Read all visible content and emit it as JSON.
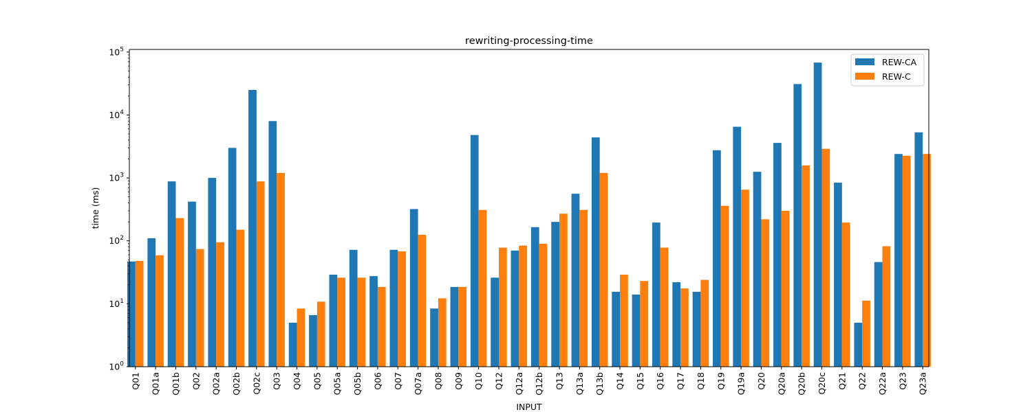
{
  "chart_data": {
    "type": "bar",
    "title": "rewriting-processing-time",
    "xlabel": "INPUT",
    "ylabel": "time (ms)",
    "yscale": "log",
    "ylim": [
      1,
      110000
    ],
    "yticks": [
      {
        "value": 1,
        "base": "10",
        "exp": "0"
      },
      {
        "value": 10,
        "base": "10",
        "exp": "1"
      },
      {
        "value": 100,
        "base": "10",
        "exp": "2"
      },
      {
        "value": 1000,
        "base": "10",
        "exp": "3"
      },
      {
        "value": 10000,
        "base": "10",
        "exp": "4"
      },
      {
        "value": 100000,
        "base": "10",
        "exp": "5"
      }
    ],
    "grid": false,
    "legend_position": "top-right",
    "categories": [
      "Q01",
      "Q01a",
      "Q01b",
      "Q02",
      "Q02a",
      "Q02b",
      "Q02c",
      "Q03",
      "Q04",
      "Q05",
      "Q05a",
      "Q05b",
      "Q06",
      "Q07",
      "Q07a",
      "Q08",
      "Q09",
      "Q10",
      "Q12",
      "Q12a",
      "Q12b",
      "Q13",
      "Q13a",
      "Q13b",
      "Q14",
      "Q15",
      "Q16",
      "Q17",
      "Q18",
      "Q19",
      "Q19a",
      "Q20",
      "Q20a",
      "Q20b",
      "Q20c",
      "Q21",
      "Q22",
      "Q22a",
      "Q23",
      "Q23a"
    ],
    "series": [
      {
        "name": "REW-CA",
        "color": "#1f77b4",
        "values": [
          47,
          110,
          880,
          420,
          1000,
          3000,
          25000,
          8000,
          5,
          6.6,
          29,
          72,
          27.5,
          72,
          320,
          8.4,
          18.5,
          4800,
          26,
          70,
          165,
          200,
          560,
          4400,
          15.5,
          14,
          195,
          22,
          15.5,
          2750,
          6500,
          1250,
          3600,
          31000,
          68000,
          840,
          5,
          46,
          2400,
          5300
        ]
      },
      {
        "name": "REW-C",
        "color": "#ff7f0e",
        "values": [
          48,
          59,
          230,
          74,
          95,
          150,
          880,
          1200,
          8.4,
          10.8,
          26,
          26,
          18.5,
          68,
          125,
          12.2,
          18.5,
          310,
          78,
          84,
          90,
          270,
          310,
          1200,
          29,
          23,
          78,
          17.5,
          24,
          360,
          650,
          220,
          300,
          1580,
          2900,
          195,
          11.2,
          82,
          2250,
          2400
        ]
      }
    ]
  }
}
